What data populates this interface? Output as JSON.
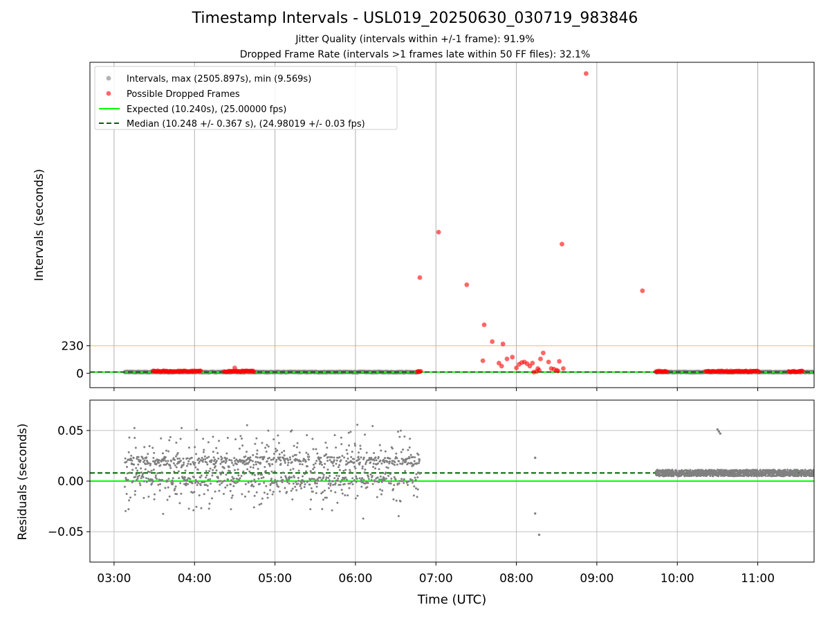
{
  "chart_data": [
    {
      "type": "scatter",
      "title": "Timestamp Intervals - USL019_20250630_030719_983846",
      "subtitles": [
        "Jitter Quality (intervals within +/-1 frame): 91.9%",
        "Dropped Frame Rate (intervals >1 frames late within 50 FF files): 32.1%"
      ],
      "xlabel": "",
      "ylabel": "Intervals (seconds)",
      "xticks": [
        "03:00",
        "04:00",
        "05:00",
        "06:00",
        "07:00",
        "08:00",
        "09:00",
        "10:00",
        "11:00"
      ],
      "xlim": [
        "02:42",
        "11:42"
      ],
      "yticks": [
        0,
        230
      ],
      "ylim": [
        -120,
        2600
      ],
      "grid": "vertical",
      "legend_position": "top-left",
      "legend": [
        "Intervals, max (2505.897s), min (9.569s)",
        "Possible Dropped Frames",
        "Expected (10.240s), (25.00000 fps)",
        "Median (10.248 +/- 0.367 s), (24.98019 +/- 0.03 fps)"
      ],
      "threshold_line": 230,
      "expected": 10.24,
      "median": 10.248,
      "normal_interval_segments": [
        [
          "03:08",
          "06:48"
        ],
        [
          "09:44",
          "11:42"
        ]
      ],
      "dropped_frame_bands": [
        [
          "03:29",
          "04:05"
        ],
        [
          "04:22",
          "04:45"
        ],
        [
          "06:46",
          "06:49"
        ],
        [
          "09:44",
          "09:53"
        ],
        [
          "10:21",
          "11:01"
        ],
        [
          "11:23",
          "11:34"
        ]
      ],
      "dropped_frames": [
        {
          "x": "04:30",
          "y": 45
        },
        {
          "x": "06:48",
          "y": 800
        },
        {
          "x": "07:02",
          "y": 1180
        },
        {
          "x": "07:23",
          "y": 740
        },
        {
          "x": "07:35",
          "y": 105
        },
        {
          "x": "07:36",
          "y": 405
        },
        {
          "x": "07:42",
          "y": 265
        },
        {
          "x": "07:47",
          "y": 85
        },
        {
          "x": "07:49",
          "y": 60
        },
        {
          "x": "07:50",
          "y": 245
        },
        {
          "x": "07:53",
          "y": 120
        },
        {
          "x": "07:57",
          "y": 135
        },
        {
          "x": "08:00",
          "y": 45
        },
        {
          "x": "08:02",
          "y": 75
        },
        {
          "x": "08:04",
          "y": 90
        },
        {
          "x": "08:06",
          "y": 95
        },
        {
          "x": "08:08",
          "y": 80
        },
        {
          "x": "08:10",
          "y": 60
        },
        {
          "x": "08:12",
          "y": 85
        },
        {
          "x": "08:13",
          "y": 10
        },
        {
          "x": "08:15",
          "y": 15
        },
        {
          "x": "08:16",
          "y": 40
        },
        {
          "x": "08:17",
          "y": 25
        },
        {
          "x": "08:18",
          "y": 120
        },
        {
          "x": "08:20",
          "y": 170
        },
        {
          "x": "08:24",
          "y": 95
        },
        {
          "x": "08:26",
          "y": 40
        },
        {
          "x": "08:28",
          "y": 35
        },
        {
          "x": "08:30",
          "y": 25
        },
        {
          "x": "08:31",
          "y": 20
        },
        {
          "x": "08:32",
          "y": 100
        },
        {
          "x": "08:34",
          "y": 1080
        },
        {
          "x": "08:35",
          "y": 40
        },
        {
          "x": "08:52",
          "y": 2505.897
        },
        {
          "x": "09:34",
          "y": 690
        }
      ]
    },
    {
      "type": "scatter",
      "xlabel": "Time (UTC)",
      "ylabel": "Residuals (seconds)",
      "xticks": [
        "03:00",
        "04:00",
        "05:00",
        "06:00",
        "07:00",
        "08:00",
        "09:00",
        "10:00",
        "11:00"
      ],
      "xlim": [
        "02:42",
        "11:42"
      ],
      "yticks": [
        "0.05",
        "0.00",
        "−0.05"
      ],
      "ylim": [
        -0.08,
        0.08
      ],
      "grid": "both",
      "expected": 0.0,
      "median": 0.008,
      "noisy_segment": {
        "range": [
          "03:08",
          "06:48"
        ],
        "center": 0.01,
        "spread": 0.035
      },
      "tight_segment": {
        "range": [
          "09:44",
          "11:42"
        ],
        "center": 0.008,
        "spread": 0.004
      },
      "isolated_points": [
        {
          "x": "08:14",
          "y": 0.023
        },
        {
          "x": "08:14",
          "y": -0.032
        },
        {
          "x": "08:17",
          "y": -0.053
        },
        {
          "x": "10:30",
          "y": 0.051
        },
        {
          "x": "10:31",
          "y": 0.049
        },
        {
          "x": "10:32",
          "y": 0.047
        }
      ]
    }
  ],
  "colors": {
    "intervals": "#808080",
    "dropped": "#ff0000",
    "expected": "#00ff00",
    "median": "#006400",
    "threshold": "#ffa500",
    "grid": "#b0b0b0"
  }
}
